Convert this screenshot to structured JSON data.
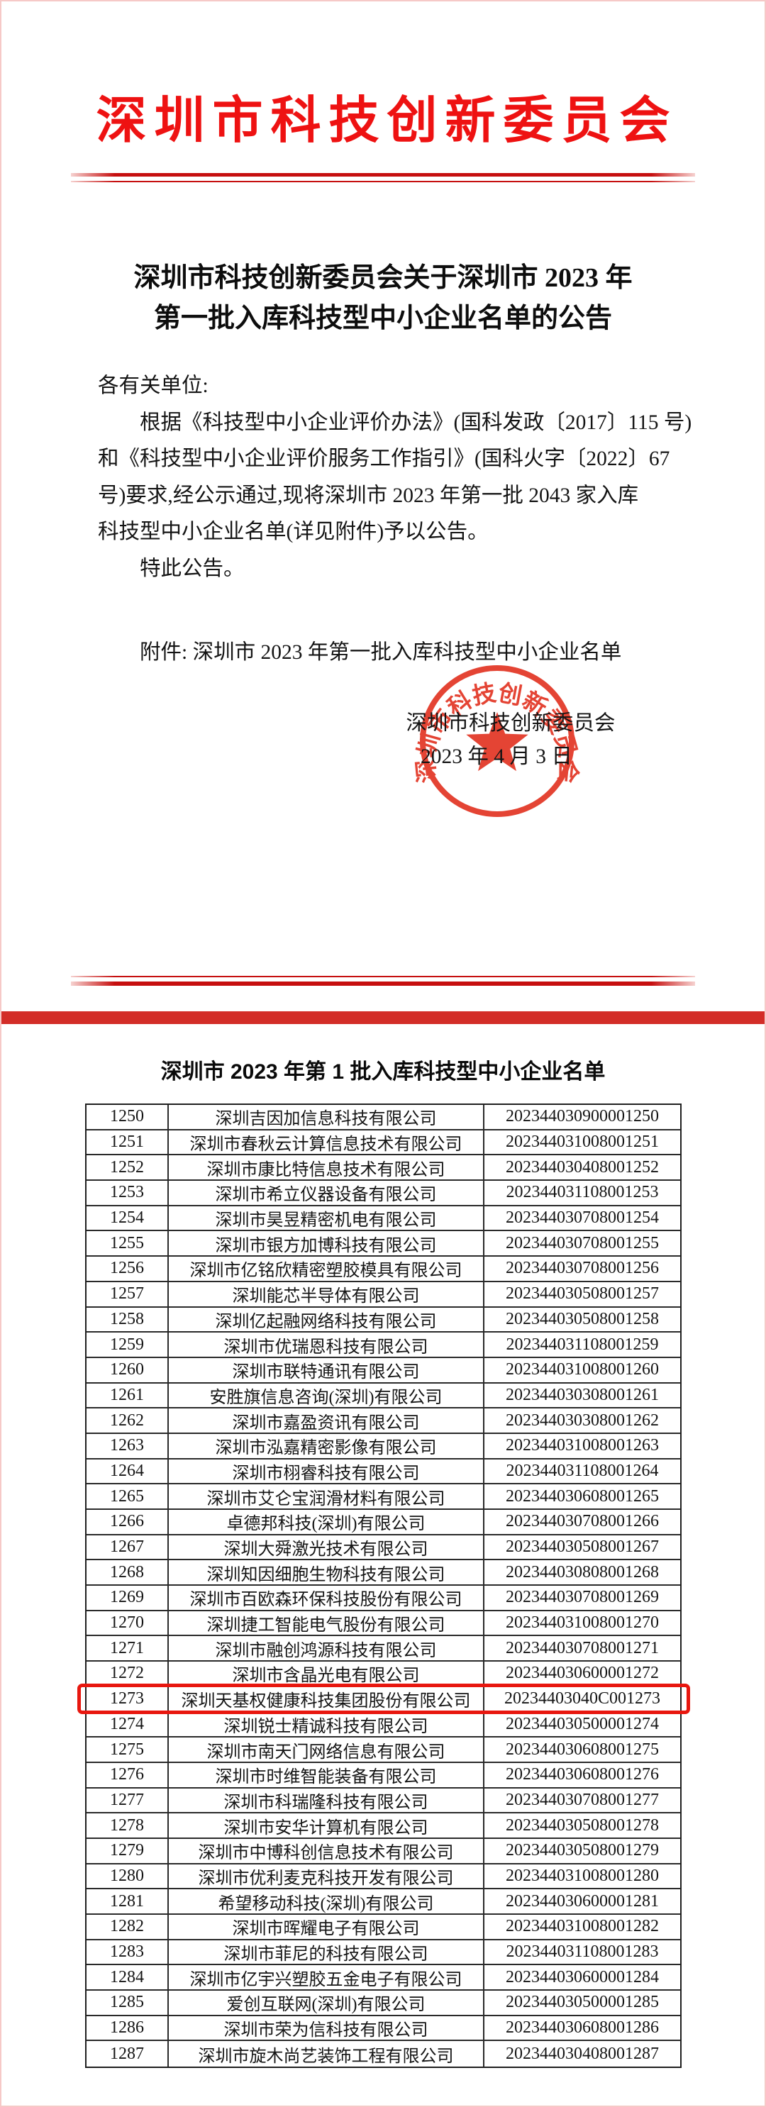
{
  "colors": {
    "letterhead_red": "#ee1212",
    "divider_bar_red": "#d32d28",
    "seal_red": "#e2301f",
    "highlight_red": "#e8170f"
  },
  "page1": {
    "letterhead": "深圳市科技创新委员会",
    "doc_title_line1": "深圳市科技创新委员会关于深圳市 2023 年",
    "doc_title_line2": "第一批入库科技型中小企业名单的公告",
    "salutation": "各有关单位:",
    "body_lines": [
      {
        "text": "根据《科技型中小企业评价办法》(国科发政〔2017〕115 号)",
        "indent": true
      },
      {
        "text": "和《科技型中小企业评价服务工作指引》(国科火字〔2022〕67",
        "indent": false
      },
      {
        "text": "号)要求,经公示通过,现将深圳市 2023 年第一批 2043 家入库",
        "indent": false
      },
      {
        "text": "科技型中小企业名单(详见附件)予以公告。",
        "indent": false
      },
      {
        "text": "特此公告。",
        "indent": true
      }
    ],
    "attachment": "附件: 深圳市 2023 年第一批入库科技型中小企业名单",
    "signer": "深圳市科技创新委员会",
    "date": "2023 年 4 月 3 日",
    "seal_text": "深圳市科技创新委员会"
  },
  "page2": {
    "table_title": "深圳市 2023 年第 1 批入库科技型中小企业名单",
    "highlight_row": "1273",
    "rows": [
      {
        "no": "1250",
        "company": "深圳吉因加信息科技有限公司",
        "reg_no": "202344030900001250"
      },
      {
        "no": "1251",
        "company": "深圳市春秋云计算信息技术有限公司",
        "reg_no": "202344031008001251"
      },
      {
        "no": "1252",
        "company": "深圳市康比特信息技术有限公司",
        "reg_no": "202344030408001252"
      },
      {
        "no": "1253",
        "company": "深圳市希立仪器设备有限公司",
        "reg_no": "202344031108001253"
      },
      {
        "no": "1254",
        "company": "深圳市昊昱精密机电有限公司",
        "reg_no": "202344030708001254"
      },
      {
        "no": "1255",
        "company": "深圳市银方加博科技有限公司",
        "reg_no": "202344030708001255"
      },
      {
        "no": "1256",
        "company": "深圳市亿铭欣精密塑胶模具有限公司",
        "reg_no": "202344030708001256"
      },
      {
        "no": "1257",
        "company": "深圳能芯半导体有限公司",
        "reg_no": "202344030508001257"
      },
      {
        "no": "1258",
        "company": "深圳亿起融网络科技有限公司",
        "reg_no": "202344030508001258"
      },
      {
        "no": "1259",
        "company": "深圳市优瑞恩科技有限公司",
        "reg_no": "202344031108001259"
      },
      {
        "no": "1260",
        "company": "深圳市联特通讯有限公司",
        "reg_no": "202344031008001260"
      },
      {
        "no": "1261",
        "company": "安胜旗信息咨询(深圳)有限公司",
        "reg_no": "202344030308001261"
      },
      {
        "no": "1262",
        "company": "深圳市嘉盈资讯有限公司",
        "reg_no": "202344030308001262"
      },
      {
        "no": "1263",
        "company": "深圳市泓嘉精密影像有限公司",
        "reg_no": "202344031008001263"
      },
      {
        "no": "1264",
        "company": "深圳市栩睿科技有限公司",
        "reg_no": "202344031108001264"
      },
      {
        "no": "1265",
        "company": "深圳市艾仑宝润滑材料有限公司",
        "reg_no": "202344030608001265"
      },
      {
        "no": "1266",
        "company": "卓德邦科技(深圳)有限公司",
        "reg_no": "202344030708001266"
      },
      {
        "no": "1267",
        "company": "深圳大舜激光技术有限公司",
        "reg_no": "202344030508001267"
      },
      {
        "no": "1268",
        "company": "深圳知因细胞生物科技有限公司",
        "reg_no": "202344030808001268"
      },
      {
        "no": "1269",
        "company": "深圳市百欧森环保科技股份有限公司",
        "reg_no": "202344030708001269"
      },
      {
        "no": "1270",
        "company": "深圳捷工智能电气股份有限公司",
        "reg_no": "202344031008001270"
      },
      {
        "no": "1271",
        "company": "深圳市融创鸿源科技有限公司",
        "reg_no": "202344030708001271"
      },
      {
        "no": "1272",
        "company": "深圳市含晶光电有限公司",
        "reg_no": "202344030600001272"
      },
      {
        "no": "1273",
        "company": "深圳天基权健康科技集团股份有限公司",
        "reg_no": "20234403040C001273"
      },
      {
        "no": "1274",
        "company": "深圳锐士精诚科技有限公司",
        "reg_no": "202344030500001274"
      },
      {
        "no": "1275",
        "company": "深圳市南天门网络信息有限公司",
        "reg_no": "202344030608001275"
      },
      {
        "no": "1276",
        "company": "深圳市时维智能装备有限公司",
        "reg_no": "202344030608001276"
      },
      {
        "no": "1277",
        "company": "深圳市科瑞隆科技有限公司",
        "reg_no": "202344030708001277"
      },
      {
        "no": "1278",
        "company": "深圳市安华计算机有限公司",
        "reg_no": "202344030508001278"
      },
      {
        "no": "1279",
        "company": "深圳市中博科创信息技术有限公司",
        "reg_no": "202344030508001279"
      },
      {
        "no": "1280",
        "company": "深圳市优利麦克科技开发有限公司",
        "reg_no": "202344031008001280"
      },
      {
        "no": "1281",
        "company": "希望移动科技(深圳)有限公司",
        "reg_no": "202344030600001281"
      },
      {
        "no": "1282",
        "company": "深圳市晖耀电子有限公司",
        "reg_no": "202344031008001282"
      },
      {
        "no": "1283",
        "company": "深圳市菲尼的科技有限公司",
        "reg_no": "202344031108001283"
      },
      {
        "no": "1284",
        "company": "深圳市亿宇兴塑胶五金电子有限公司",
        "reg_no": "202344030600001284"
      },
      {
        "no": "1285",
        "company": "爱创互联网(深圳)有限公司",
        "reg_no": "202344030500001285"
      },
      {
        "no": "1286",
        "company": "深圳市荣为信科技有限公司",
        "reg_no": "202344030608001286"
      },
      {
        "no": "1287",
        "company": "深圳市旋木尚艺装饰工程有限公司",
        "reg_no": "202344030408001287"
      }
    ]
  }
}
